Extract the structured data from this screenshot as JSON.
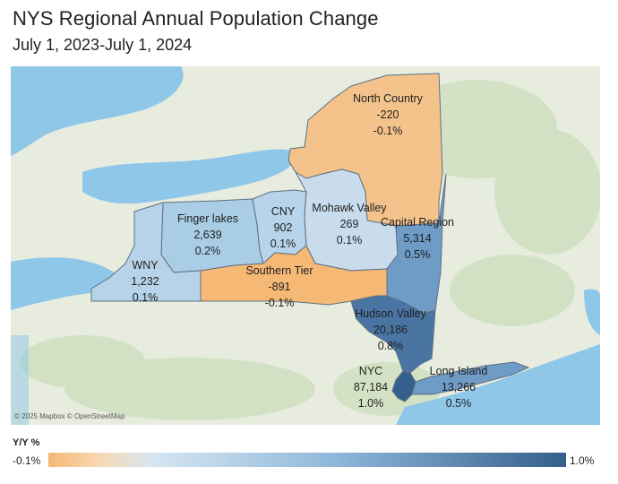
{
  "title": "NYS Regional Annual Population Change",
  "subtitle": "July 1, 2023-July 1, 2024",
  "attribution": "© 2025 Mapbox © OpenStreetMap",
  "legend": {
    "label": "Y/Y %",
    "min": "-0.1%",
    "max": "1.0%",
    "min_value": -0.1,
    "max_value": 1.0,
    "colors": [
      "#f5b875",
      "#d6e6f2",
      "#355f8c"
    ]
  },
  "regions": [
    {
      "key": "north_country",
      "name": "North Country",
      "change": "-220",
      "pct": "-0.1%",
      "pct_value": -0.1
    },
    {
      "key": "finger_lakes",
      "name": "Finger lakes",
      "change": "2,639",
      "pct": "0.2%",
      "pct_value": 0.2
    },
    {
      "key": "cny",
      "name": "CNY",
      "change": "902",
      "pct": "0.1%",
      "pct_value": 0.1
    },
    {
      "key": "mohawk_valley",
      "name": "Mohawk Valley",
      "change": "269",
      "pct": "0.1%",
      "pct_value": 0.1
    },
    {
      "key": "capital_region",
      "name": "Capital Region",
      "change": "5,314",
      "pct": "0.5%",
      "pct_value": 0.5
    },
    {
      "key": "wny",
      "name": "WNY",
      "change": "1,232",
      "pct": "0.1%",
      "pct_value": 0.1
    },
    {
      "key": "southern_tier",
      "name": "Southern Tier",
      "change": "-891",
      "pct": "-0.1%",
      "pct_value": -0.1
    },
    {
      "key": "hudson_valley",
      "name": "Hudson Valley",
      "change": "20,186",
      "pct": "0.8%",
      "pct_value": 0.8
    },
    {
      "key": "nyc",
      "name": "NYC",
      "change": "87,184",
      "pct": "1.0%",
      "pct_value": 1.0
    },
    {
      "key": "long_island",
      "name": "Long Island",
      "change": "13,266",
      "pct": "0.5%",
      "pct_value": 0.5
    }
  ]
}
